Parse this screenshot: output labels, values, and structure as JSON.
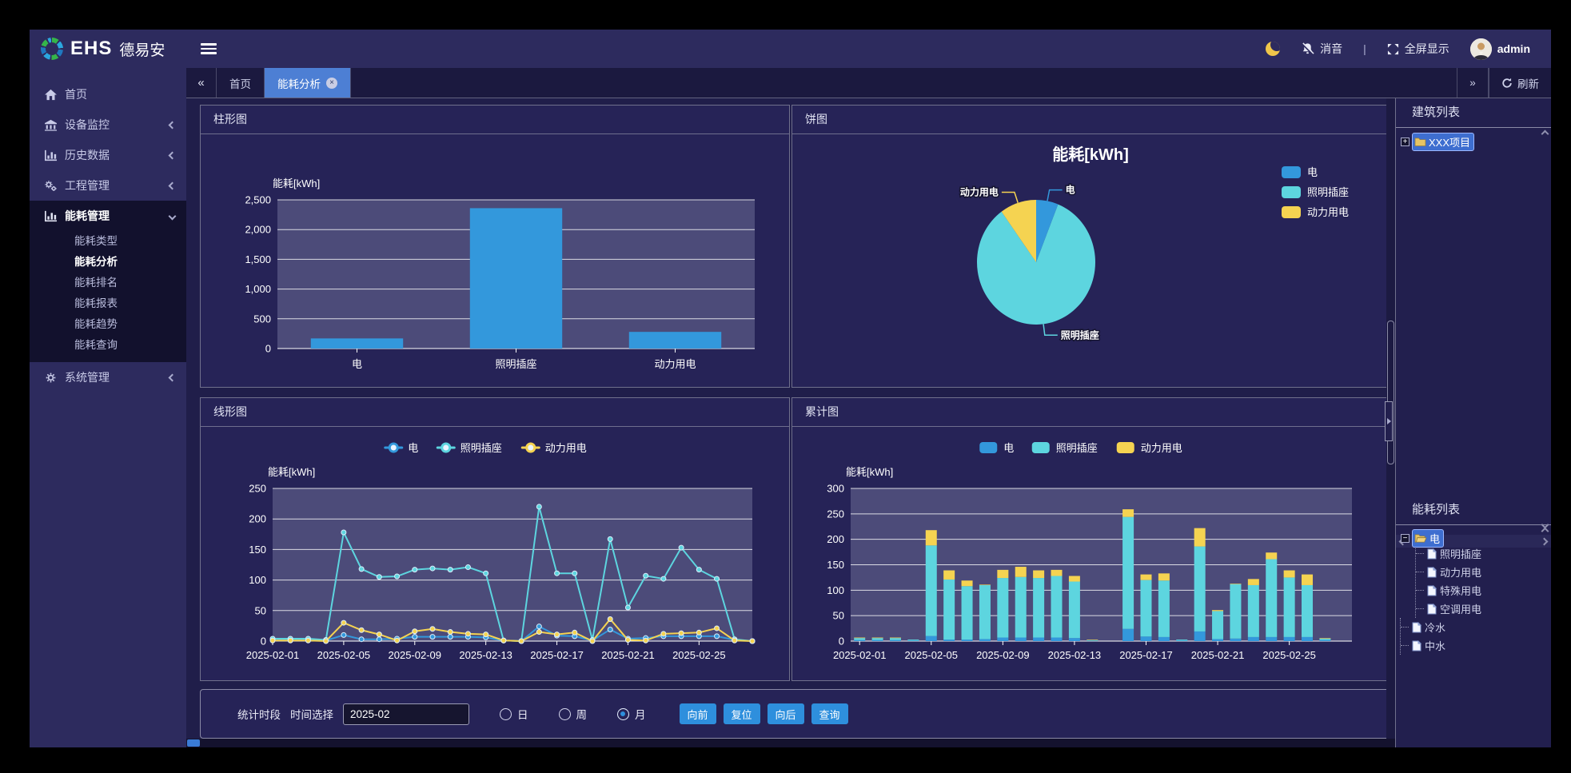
{
  "app": {
    "logo_text": "EHS",
    "logo_name": "德易安"
  },
  "header": {
    "mute": "消音",
    "divider": "|",
    "fullscreen": "全屏显示",
    "username": "admin"
  },
  "tabbar": {
    "scroll_left": "«",
    "scroll_right": "»",
    "refresh": "刷新",
    "tabs": [
      {
        "label": "首页"
      },
      {
        "label": "能耗分析"
      }
    ]
  },
  "icons": {
    "close": "×",
    "plus": "+",
    "minus": "−"
  },
  "sidebar": {
    "items": [
      {
        "label": "首页",
        "icon": "home"
      },
      {
        "label": "设备监控",
        "icon": "bank"
      },
      {
        "label": "历史数据",
        "icon": "chart"
      },
      {
        "label": "工程管理",
        "icon": "gears"
      },
      {
        "label": "能耗管理",
        "icon": "chart",
        "expanded": true,
        "children": [
          {
            "label": "能耗类型"
          },
          {
            "label": "能耗分析",
            "active": true
          },
          {
            "label": "能耗排名"
          },
          {
            "label": "能耗报表"
          },
          {
            "label": "能耗趋势"
          },
          {
            "label": "能耗查询"
          }
        ]
      },
      {
        "label": "系统管理",
        "icon": "gear"
      }
    ]
  },
  "panels": {
    "bar": "柱形图",
    "pie": "饼图",
    "line": "线形图",
    "stack": "累计图"
  },
  "right": {
    "building": {
      "title": "建筑列表",
      "root": "XXX项目"
    },
    "energy": {
      "title": "能耗列表",
      "root": "电",
      "children": [
        {
          "label": "照明插座"
        },
        {
          "label": "动力用电"
        },
        {
          "label": "特殊用电"
        },
        {
          "label": "空调用电"
        }
      ],
      "siblings": [
        {
          "label": "冷水"
        },
        {
          "label": "中水"
        }
      ]
    }
  },
  "controls": {
    "section_label": "统计时段",
    "time_label": "时间选择",
    "time_value": "2025-02",
    "radios": [
      {
        "label": "日",
        "checked": false
      },
      {
        "label": "周",
        "checked": false
      },
      {
        "label": "月",
        "checked": true
      }
    ],
    "buttons": [
      {
        "label": "向前"
      },
      {
        "label": "复位"
      },
      {
        "label": "向后"
      },
      {
        "label": "查询"
      }
    ]
  },
  "colors": {
    "blue": "#3398dc",
    "cyan": "#5dd5df",
    "yellow": "#f5d351",
    "plot_bg": "#4c4b79",
    "tab_active": "#4d7fd4",
    "button": "#2e8fdd"
  },
  "chart_data": [
    {
      "id": "bar",
      "type": "bar",
      "ylabel": "能耗[kWh]",
      "categories": [
        "电",
        "照明插座",
        "动力用电"
      ],
      "values": [
        170,
        2360,
        280
      ],
      "ylim": [
        0,
        2500
      ],
      "ytick": 500,
      "color": "#3398dc",
      "grid": true
    },
    {
      "id": "pie",
      "type": "pie",
      "title": "能耗[kWh]",
      "labels": [
        "电",
        "照明插座",
        "动力用电"
      ],
      "values": [
        170,
        2360,
        280
      ],
      "colors": [
        "#3398dc",
        "#5dd5df",
        "#f5d351"
      ],
      "legend_position": "right"
    },
    {
      "id": "line",
      "type": "line",
      "ylabel": "能耗[kWh]",
      "ylim": [
        0,
        250
      ],
      "ytick": 50,
      "x_tick_labels": [
        "2025-02-01",
        "2025-02-05",
        "2025-02-09",
        "2025-02-13",
        "2025-02-17",
        "2025-02-21",
        "2025-02-25"
      ],
      "x_tick_interval": 4,
      "days": 28,
      "legend_position": "top",
      "series": [
        {
          "name": "电",
          "color": "#3398dc",
          "values": [
            2,
            2,
            2,
            1,
            10,
            3,
            3,
            4,
            7,
            7,
            7,
            7,
            6,
            1,
            0,
            24,
            9,
            8,
            1,
            19,
            4,
            5,
            8,
            8,
            8,
            8,
            2,
            0
          ]
        },
        {
          "name": "照明插座",
          "color": "#5dd5df",
          "values": [
            4,
            4,
            4,
            2,
            178,
            118,
            105,
            106,
            117,
            119,
            117,
            121,
            111,
            1,
            0,
            220,
            111,
            111,
            2,
            167,
            55,
            107,
            102,
            153,
            117,
            102,
            3,
            0
          ]
        },
        {
          "name": "动力用电",
          "color": "#f5d351",
          "values": [
            1,
            1,
            1,
            0,
            30,
            18,
            11,
            1,
            16,
            20,
            15,
            12,
            11,
            1,
            0,
            15,
            11,
            14,
            0,
            36,
            2,
            1,
            12,
            13,
            14,
            21,
            1,
            0
          ]
        }
      ]
    },
    {
      "id": "stack",
      "type": "bar-stacked",
      "ylabel": "能耗[kWh]",
      "ylim": [
        0,
        300
      ],
      "ytick": 50,
      "x_tick_labels": [
        "2025-02-01",
        "2025-02-05",
        "2025-02-09",
        "2025-02-13",
        "2025-02-17",
        "2025-02-21",
        "2025-02-25"
      ],
      "x_tick_interval": 4,
      "days": 28,
      "legend_position": "top",
      "series": [
        {
          "name": "电",
          "color": "#3398dc",
          "values": [
            2,
            2,
            2,
            1,
            10,
            3,
            3,
            4,
            7,
            7,
            7,
            7,
            6,
            1,
            0,
            24,
            9,
            8,
            1,
            19,
            4,
            5,
            8,
            8,
            8,
            8,
            2,
            0
          ]
        },
        {
          "name": "照明插座",
          "color": "#5dd5df",
          "values": [
            4,
            4,
            4,
            2,
            178,
            118,
            105,
            106,
            117,
            119,
            117,
            121,
            111,
            1,
            0,
            220,
            111,
            111,
            2,
            167,
            55,
            107,
            102,
            153,
            117,
            102,
            3,
            0
          ]
        },
        {
          "name": "动力用电",
          "color": "#f5d351",
          "values": [
            1,
            1,
            1,
            0,
            30,
            18,
            11,
            1,
            16,
            20,
            15,
            12,
            11,
            1,
            0,
            15,
            11,
            14,
            0,
            36,
            2,
            1,
            12,
            13,
            14,
            21,
            1,
            0
          ]
        }
      ]
    }
  ]
}
